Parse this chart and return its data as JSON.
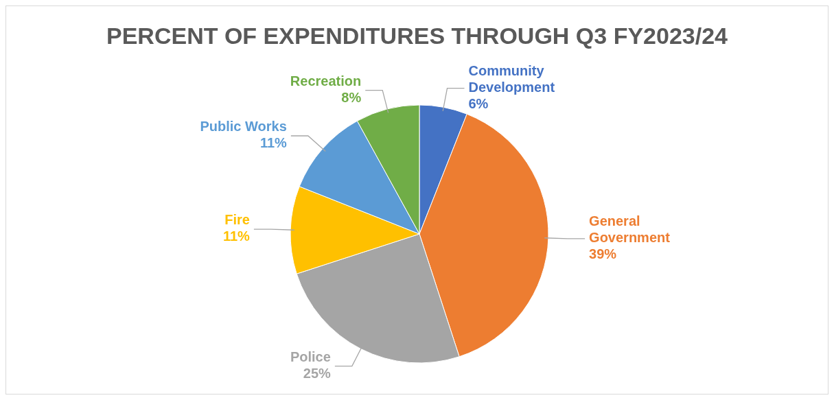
{
  "chart_data": {
    "type": "pie",
    "title": "PERCENT OF EXPENDITURES THROUGH Q3 FY2023/24",
    "categories": [
      "Community Development",
      "General Government",
      "Police",
      "Fire",
      "Public Works",
      "Recreation"
    ],
    "values": [
      6,
      39,
      25,
      11,
      11,
      8
    ],
    "value_labels": [
      "6%",
      "39%",
      "25%",
      "11%",
      "11%",
      "8%"
    ],
    "colors": [
      "#4472c4",
      "#ed7d31",
      "#a5a5a5",
      "#ffc000",
      "#5b9bd5",
      "#70ad47"
    ]
  }
}
